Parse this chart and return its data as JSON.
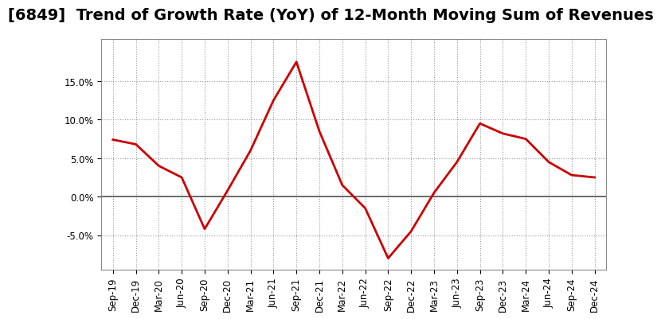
{
  "title": "[6849]  Trend of Growth Rate (YoY) of 12-Month Moving Sum of Revenues",
  "x_labels": [
    "Sep-19",
    "Dec-19",
    "Mar-20",
    "Jun-20",
    "Sep-20",
    "Dec-20",
    "Mar-21",
    "Jun-21",
    "Sep-21",
    "Dec-21",
    "Mar-22",
    "Jun-22",
    "Sep-22",
    "Dec-22",
    "Mar-23",
    "Jun-23",
    "Sep-23",
    "Dec-23",
    "Mar-24",
    "Jun-24",
    "Sep-24",
    "Dec-24"
  ],
  "y_values": [
    7.4,
    6.8,
    4.0,
    2.5,
    -4.2,
    0.8,
    6.0,
    12.5,
    17.5,
    8.5,
    1.5,
    -1.5,
    -8.0,
    -4.5,
    0.5,
    4.5,
    9.5,
    8.2,
    7.5,
    4.5,
    2.8,
    2.5
  ],
  "line_color": "#cc0000",
  "line_width": 2.0,
  "background_color": "#ffffff",
  "plot_background": "#ffffff",
  "grid_color": "#999999",
  "zero_line_color": "#555555",
  "ylim": [
    -9.5,
    20.5
  ],
  "yticks": [
    -5.0,
    0.0,
    5.0,
    10.0,
    15.0
  ],
  "title_fontsize": 14,
  "tick_fontsize": 8.5
}
